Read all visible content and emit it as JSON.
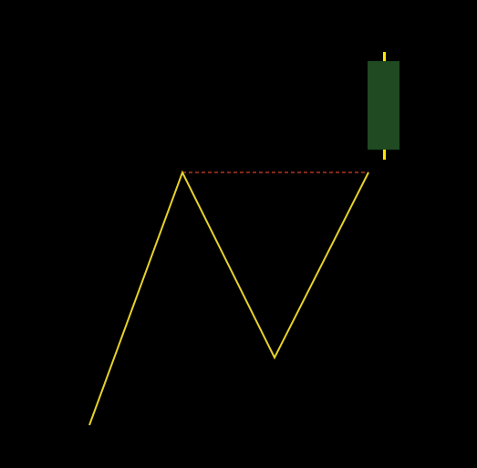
{
  "diagram": {
    "background_color": "#000000",
    "price_path_color": "#e6d32a",
    "resistance_line_color": "#d2402a",
    "candle_body_color": "#1f4a22",
    "candle_wick_color": "#ffe500",
    "price_path": [
      {
        "label": "start"
      },
      {
        "label": "peak-1"
      },
      {
        "label": "trough"
      },
      {
        "label": "peak-2"
      }
    ],
    "resistance_line": {
      "style": "dashed"
    },
    "candle": {
      "direction": "bullish"
    }
  }
}
